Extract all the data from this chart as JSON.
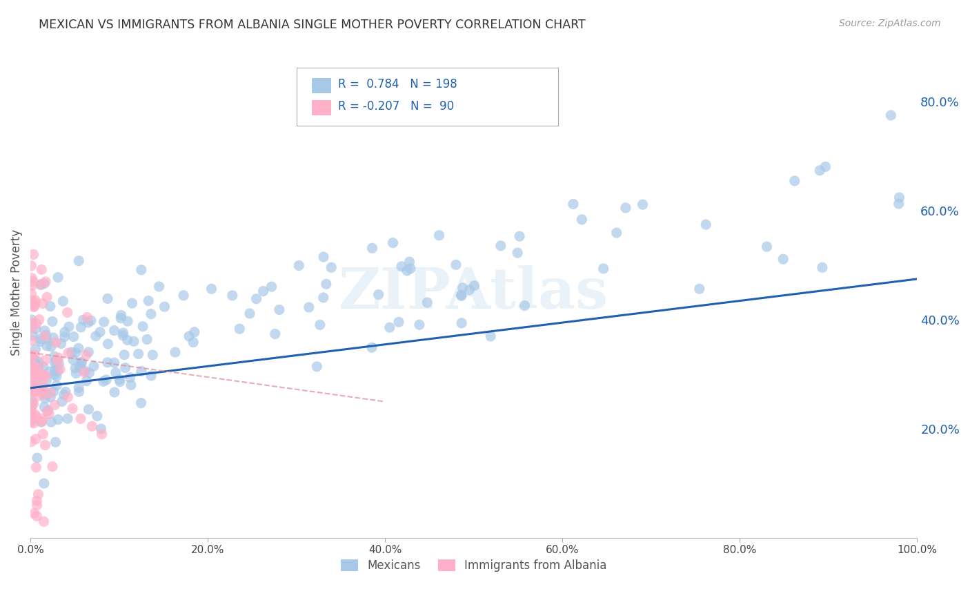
{
  "title": "MEXICAN VS IMMIGRANTS FROM ALBANIA SINGLE MOTHER POVERTY CORRELATION CHART",
  "source": "Source: ZipAtlas.com",
  "ylabel": "Single Mother Poverty",
  "legend1_label": "Mexicans",
  "legend2_label": "Immigrants from Albania",
  "r1": 0.784,
  "n1": 198,
  "r2": -0.207,
  "n2": 90,
  "color_mexican": "#a8c8e8",
  "color_albanian": "#ffb0c8",
  "line_color_mexican": "#2060b0",
  "line_color_albanian": "#e08898",
  "watermark": "ZIPAtlas",
  "xlim": [
    0.0,
    1.0
  ],
  "ylim": [
    0.0,
    0.9
  ],
  "xticklabels": [
    "0.0%",
    "20.0%",
    "40.0%",
    "60.0%",
    "80.0%",
    "100.0%"
  ],
  "yticklabels": [
    "20.0%",
    "40.0%",
    "60.0%",
    "80.0%"
  ],
  "ytick_positions": [
    0.2,
    0.4,
    0.6,
    0.8
  ],
  "xtick_positions": [
    0.0,
    0.2,
    0.4,
    0.6,
    0.8,
    1.0
  ],
  "mx_line_x0": 0.0,
  "mx_line_y0": 0.275,
  "mx_line_x1": 1.0,
  "mx_line_y1": 0.475,
  "al_line_x0": 0.0,
  "al_line_y0": 0.34,
  "al_line_x1": 0.4,
  "al_line_y1": 0.25
}
